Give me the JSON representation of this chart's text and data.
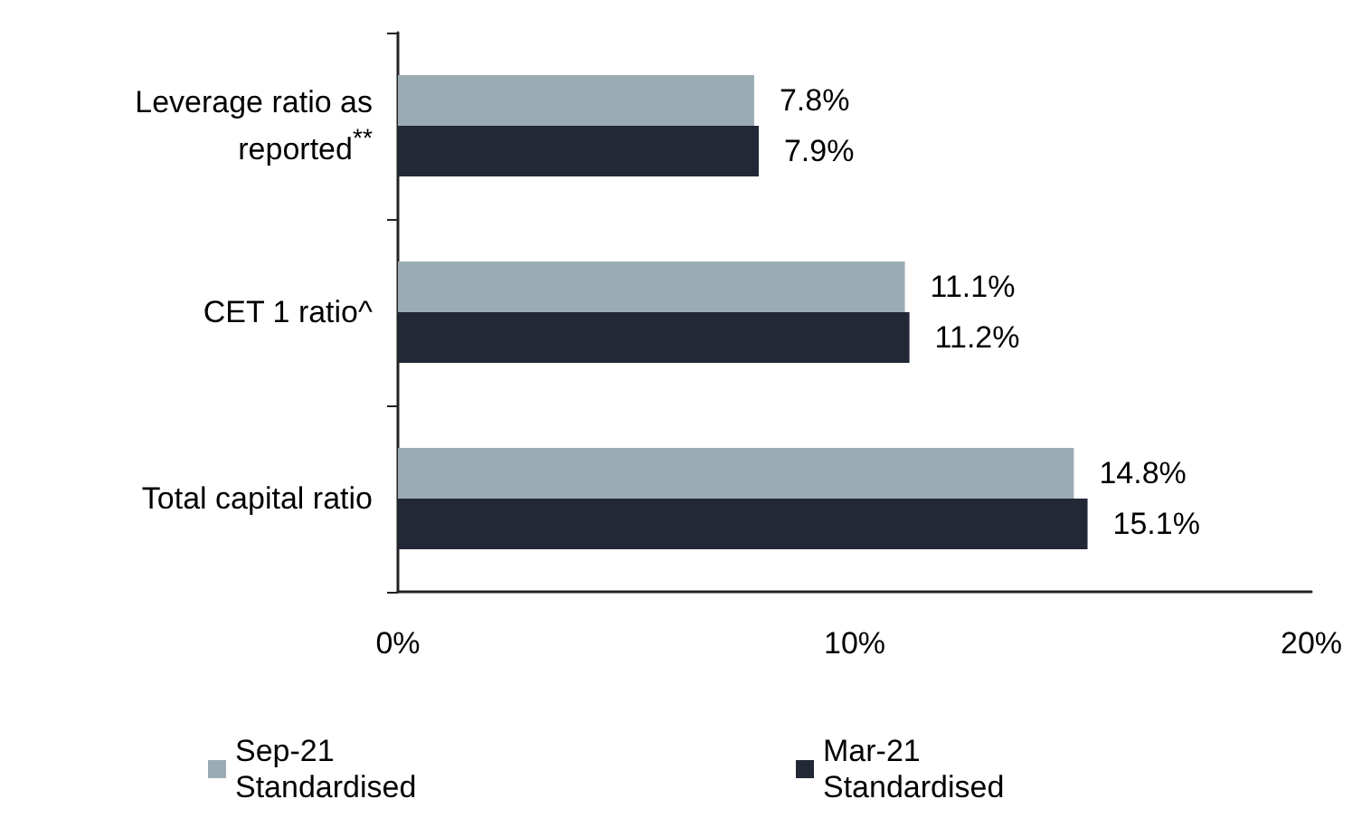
{
  "chart_data": {
    "type": "bar",
    "orientation": "horizontal",
    "categories": [
      "Leverage ratio as reported$^{**}$",
      "CET 1 ratio^",
      "Total capital ratio"
    ],
    "series": [
      {
        "name": "Sep-21 Standardised",
        "color": "#9aabb3",
        "values": [
          7.8,
          11.1,
          14.8
        ],
        "value_labels": [
          "7.8%",
          "11.1%",
          "14.8%"
        ]
      },
      {
        "name": "Mar-21 Standardised",
        "color": "#222835",
        "values": [
          7.9,
          11.2,
          15.1
        ],
        "value_labels": [
          "7.9%",
          "11.2%",
          "15.1%"
        ]
      }
    ],
    "xlim": [
      0,
      20
    ],
    "xticks": [
      {
        "value": 0,
        "label": "0%"
      },
      {
        "value": 10,
        "label": "10%"
      },
      {
        "value": 20,
        "label": "20%"
      }
    ],
    "grid": false,
    "legend": "bottom"
  }
}
